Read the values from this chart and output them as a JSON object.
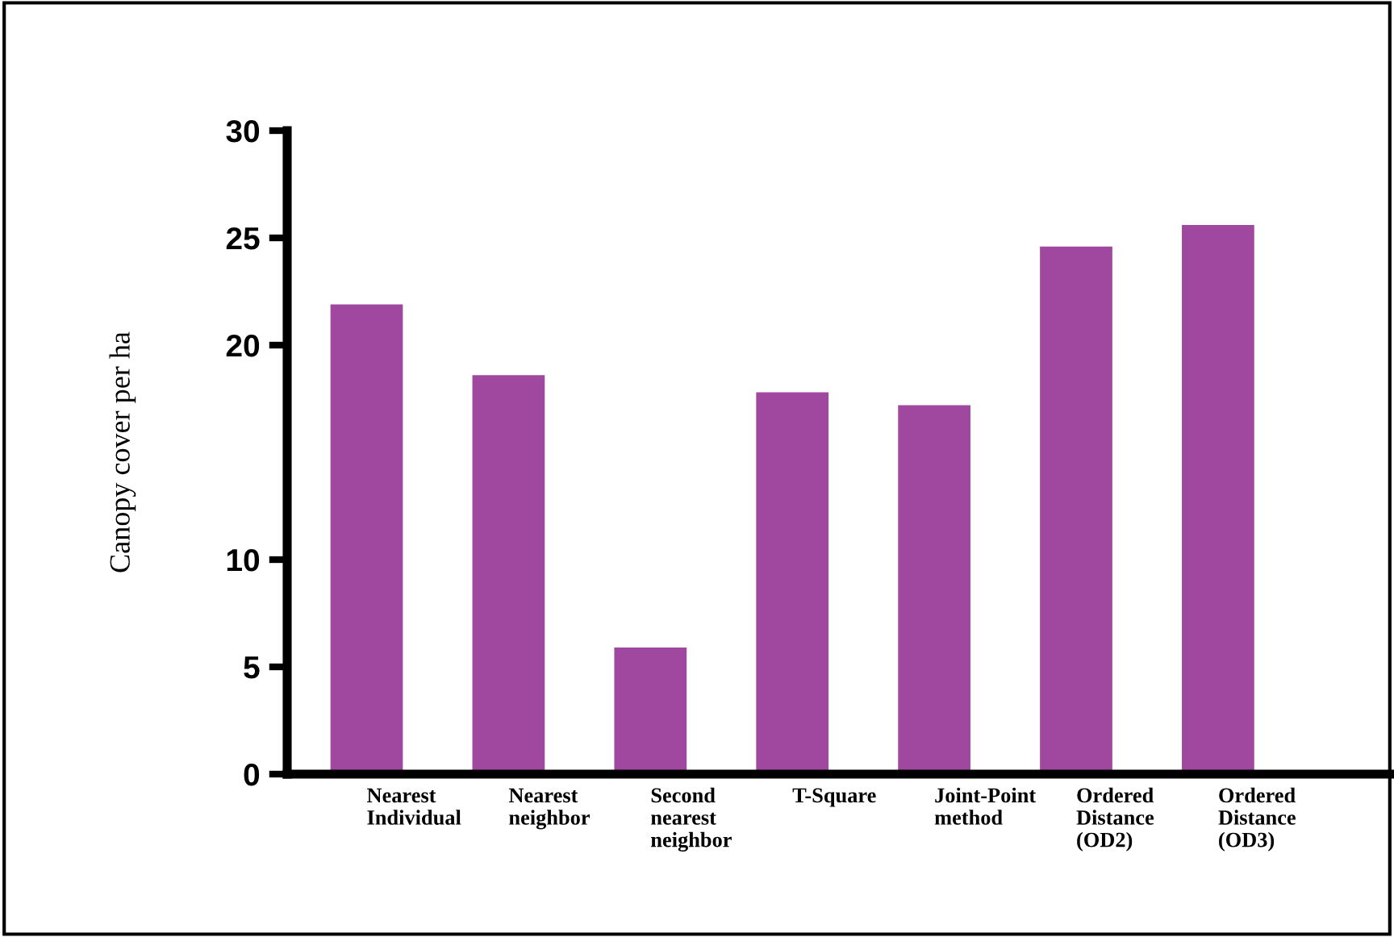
{
  "chart_data": {
    "type": "bar",
    "ylabel": "Canopy cover per ha",
    "categories": [
      "Nearest\nIndividual",
      "Nearest\nneighbor",
      "Second\nnearest\nneighbor",
      "T-Square",
      "Joint-Point\nmethod",
      "Ordered\nDistance\n(OD2)",
      "Ordered\nDistance\n(OD3)"
    ],
    "values": [
      21.9,
      18.6,
      5.9,
      17.8,
      17.2,
      24.6,
      25.6
    ],
    "color": "#a0479f",
    "ylim": [
      0,
      30
    ],
    "yticks": [
      0,
      5,
      10,
      20,
      25,
      30
    ],
    "grid": false
  }
}
